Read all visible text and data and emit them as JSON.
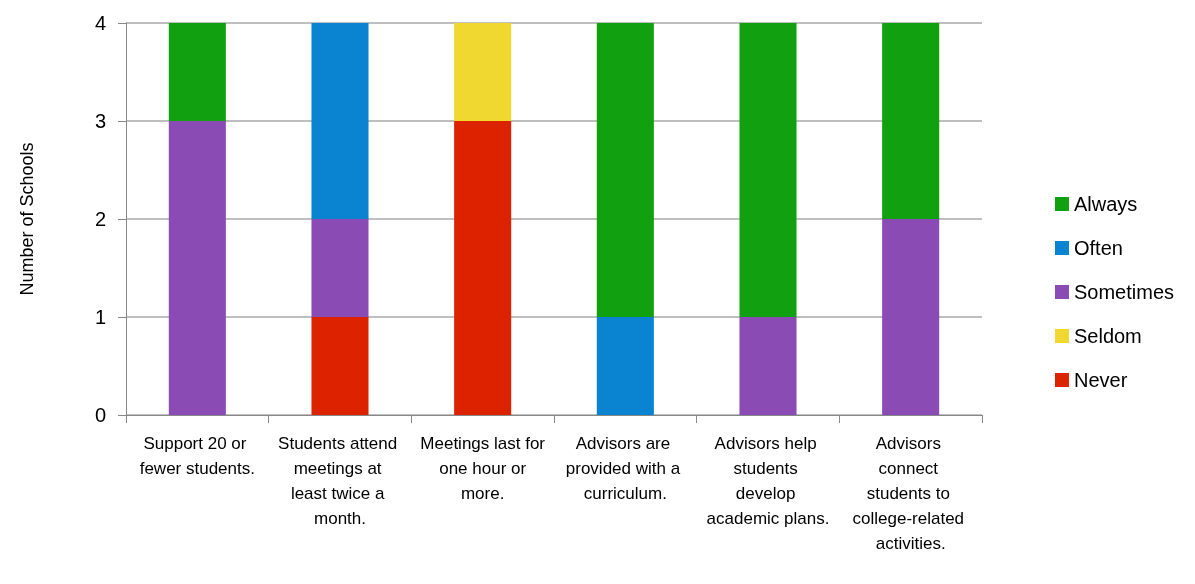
{
  "chart_data": {
    "type": "bar",
    "stacked": true,
    "ylabel": "Number of Schools",
    "categories": [
      "Support 20 or fewer students.",
      "Students attend meetings at least twice a month.",
      "Meetings last for one hour or more.",
      "Advisors are provided with a curriculum.",
      "Advisors help students develop academic plans.",
      "Advisors connect students to college-related activities."
    ],
    "series": [
      {
        "name": "Never",
        "color": "#dd2200",
        "values": [
          0,
          1,
          3,
          0,
          0,
          0
        ]
      },
      {
        "name": "Seldom",
        "color": "#f0d830",
        "values": [
          0,
          0,
          1,
          0,
          0,
          0
        ]
      },
      {
        "name": "Sometimes",
        "color": "#8a4bb5",
        "values": [
          3,
          1,
          0,
          0,
          1,
          2
        ]
      },
      {
        "name": "Often",
        "color": "#0a84d0",
        "values": [
          0,
          2,
          0,
          1,
          0,
          0
        ]
      },
      {
        "name": "Always",
        "color": "#10a010",
        "values": [
          1,
          0,
          0,
          3,
          3,
          2
        ]
      }
    ],
    "ylim": [
      0,
      4
    ],
    "yticks": [
      0,
      1,
      2,
      3,
      4
    ],
    "grid": "y",
    "legend": "right"
  }
}
